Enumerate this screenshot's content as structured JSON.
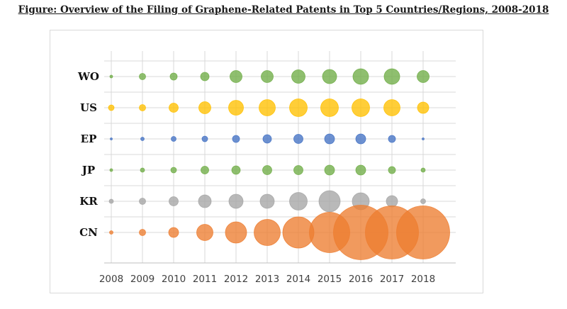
{
  "figure": {
    "title": "Figure: Overview of the Filing of Graphene-Related Patents in Top 5 Countries/Regions, 2008-2018"
  },
  "chart_data": {
    "type": "scatter",
    "subtype": "bubble",
    "title": "Figure: Overview of the Filing of Graphene-Related Patents in Top 5 Countries/Regions, 2008-2018",
    "xlabel": "",
    "ylabel": "",
    "x": [
      "2008",
      "2009",
      "2010",
      "2011",
      "2012",
      "2013",
      "2014",
      "2015",
      "2016",
      "2017",
      "2018"
    ],
    "categories": [
      "WO",
      "US",
      "EP",
      "JP",
      "KR",
      "CN"
    ],
    "grid": true,
    "legend": "none",
    "size_note": "relative bubble size (diameter, arbitrary units)",
    "series": [
      {
        "name": "WO",
        "color": "#70ad47",
        "sizes": [
          4,
          9,
          10,
          12,
          17,
          17,
          19,
          20,
          22,
          22,
          17
        ]
      },
      {
        "name": "US",
        "color": "#ffc000",
        "sizes": [
          8,
          9,
          13,
          17,
          21,
          23,
          25,
          25,
          25,
          23,
          16
        ]
      },
      {
        "name": "EP",
        "color": "#4472c4",
        "sizes": [
          3,
          5,
          7,
          8,
          10,
          12,
          13,
          14,
          14,
          10,
          3
        ]
      },
      {
        "name": "JP",
        "color": "#70ad47",
        "sizes": [
          4,
          6,
          8,
          11,
          12,
          13,
          13,
          14,
          14,
          10,
          6
        ]
      },
      {
        "name": "KR",
        "color": "#a5a5a5",
        "sizes": [
          6,
          9,
          13,
          18,
          20,
          20,
          25,
          30,
          24,
          16,
          7
        ]
      },
      {
        "name": "CN",
        "color": "#ed7d31",
        "sizes": [
          5,
          9,
          14,
          23,
          30,
          37,
          44,
          57,
          77,
          75,
          75
        ]
      }
    ]
  }
}
